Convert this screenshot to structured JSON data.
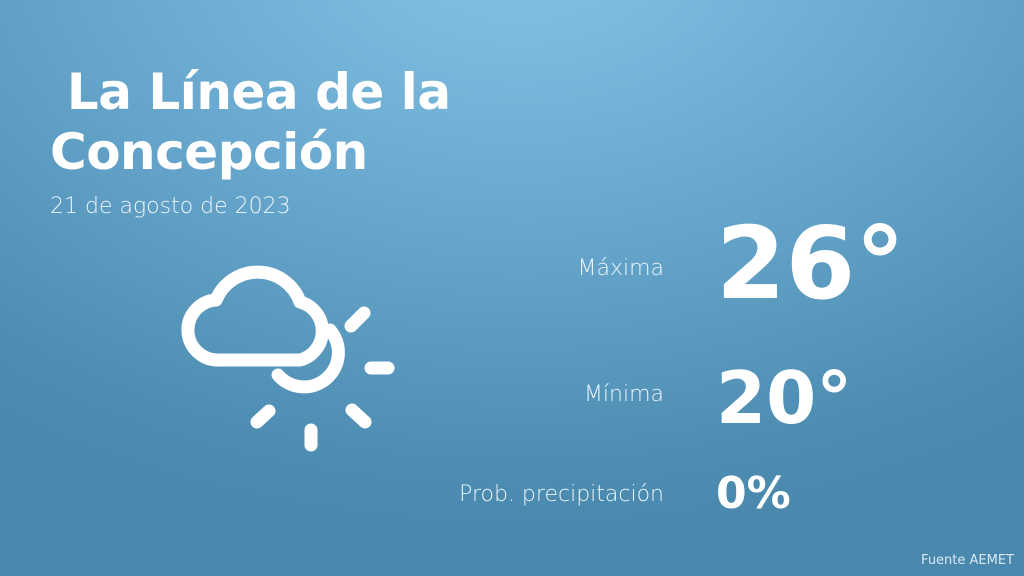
{
  "city": {
    "line1": " La Línea de la",
    "line2": "Concepción"
  },
  "date": "21 de agosto de 2023",
  "weather_icon": "cloud-sun-icon",
  "max": {
    "label": "Máxima",
    "value": "26°"
  },
  "min": {
    "label": "Mínima",
    "value": "20°"
  },
  "precip": {
    "label": "Prob. precipitación",
    "value": "0%"
  },
  "source": "Fuente AEMET"
}
